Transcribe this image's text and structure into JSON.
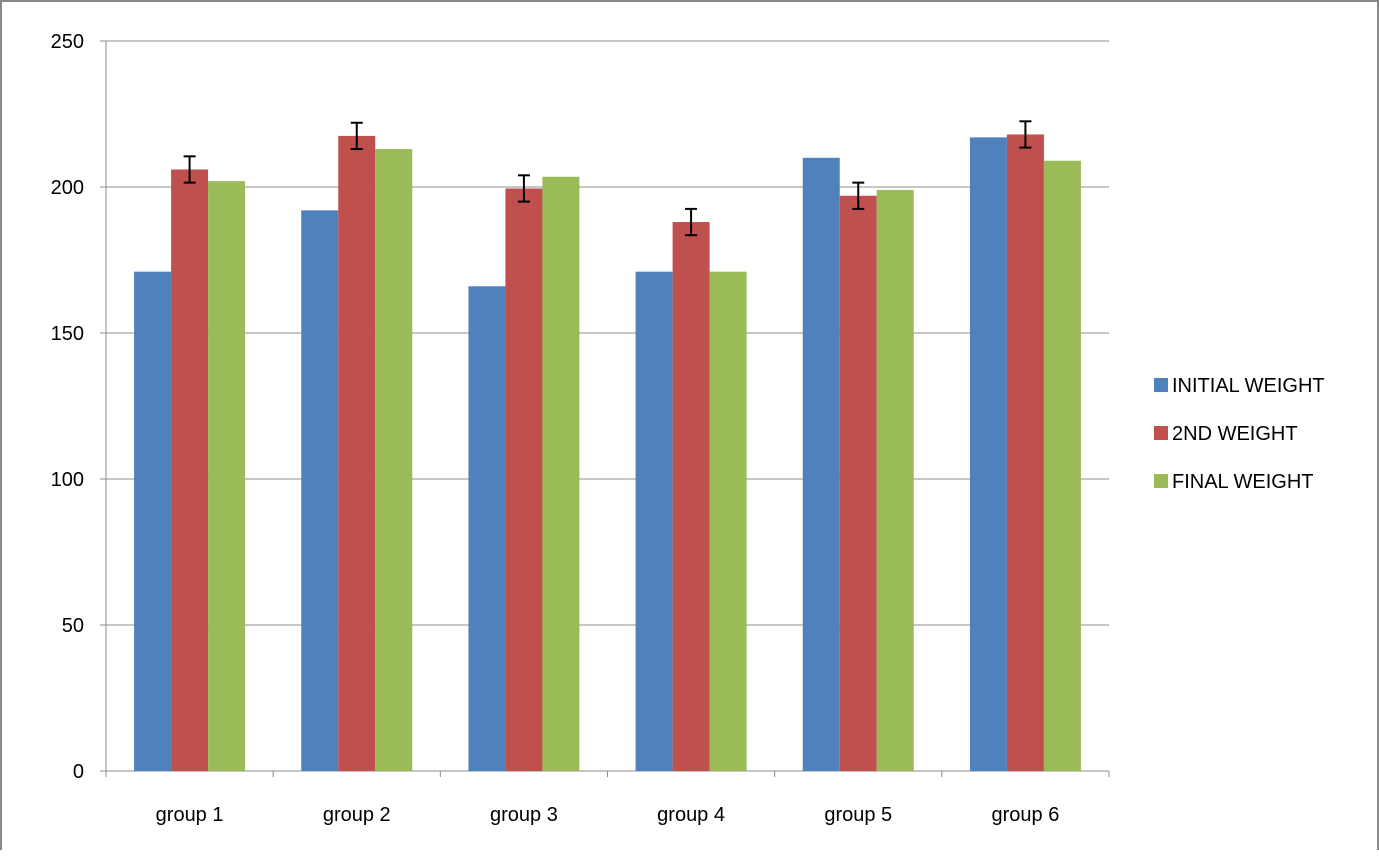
{
  "chart_data": {
    "type": "bar",
    "title": "",
    "xlabel": "",
    "ylabel": "",
    "categories": [
      "group 1",
      "group 2",
      "group 3",
      "group 4",
      "group 5",
      "group 6"
    ],
    "ylim": [
      0,
      250
    ],
    "yticks": [
      "0",
      "50",
      "100",
      "150",
      "200",
      "250"
    ],
    "grid": true,
    "legend_position": "right",
    "series": [
      {
        "name": "INITIAL WEIGHT",
        "color": "#4F81BD",
        "values": [
          171,
          192,
          166,
          171,
          210,
          217
        ]
      },
      {
        "name": "2ND WEIGHT",
        "color": "#C0504D",
        "values": [
          206,
          217.5,
          199.5,
          188,
          197,
          218
        ],
        "error": [
          4.5,
          4.5,
          4.5,
          4.5,
          4.5,
          4.5
        ]
      },
      {
        "name": "FINAL WEIGHT",
        "color": "#9BBB59",
        "values": [
          202,
          213,
          203.5,
          171,
          199,
          209
        ]
      }
    ]
  }
}
